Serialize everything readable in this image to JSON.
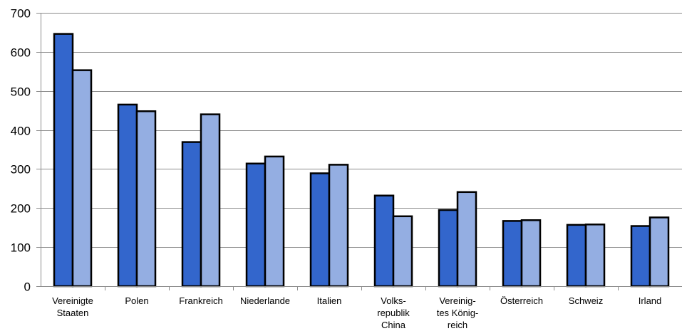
{
  "chart_data": {
    "type": "bar",
    "title": "",
    "xlabel": "",
    "ylabel": "",
    "ylim": [
      0,
      700
    ],
    "yticks": [
      0,
      100,
      200,
      300,
      400,
      500,
      600,
      700
    ],
    "grid": true,
    "legend": "none",
    "categories": [
      [
        "Vereinigte",
        "Staaten"
      ],
      [
        "Polen"
      ],
      [
        "Frankreich"
      ],
      [
        "Niederlande"
      ],
      [
        "Italien"
      ],
      [
        "Volks-",
        "republik",
        "China"
      ],
      [
        "Vereinig-",
        "tes König-",
        "reich"
      ],
      [
        "Österreich"
      ],
      [
        "Schweiz"
      ],
      [
        "Irland"
      ]
    ],
    "series": [
      {
        "color": "#3366cc",
        "values": [
          646,
          465,
          369,
          314,
          289,
          232,
          195,
          167,
          157,
          154
        ]
      },
      {
        "color": "#94aee2",
        "values": [
          553,
          448,
          440,
          332,
          311,
          179,
          241,
          169,
          158,
          176
        ]
      }
    ]
  }
}
